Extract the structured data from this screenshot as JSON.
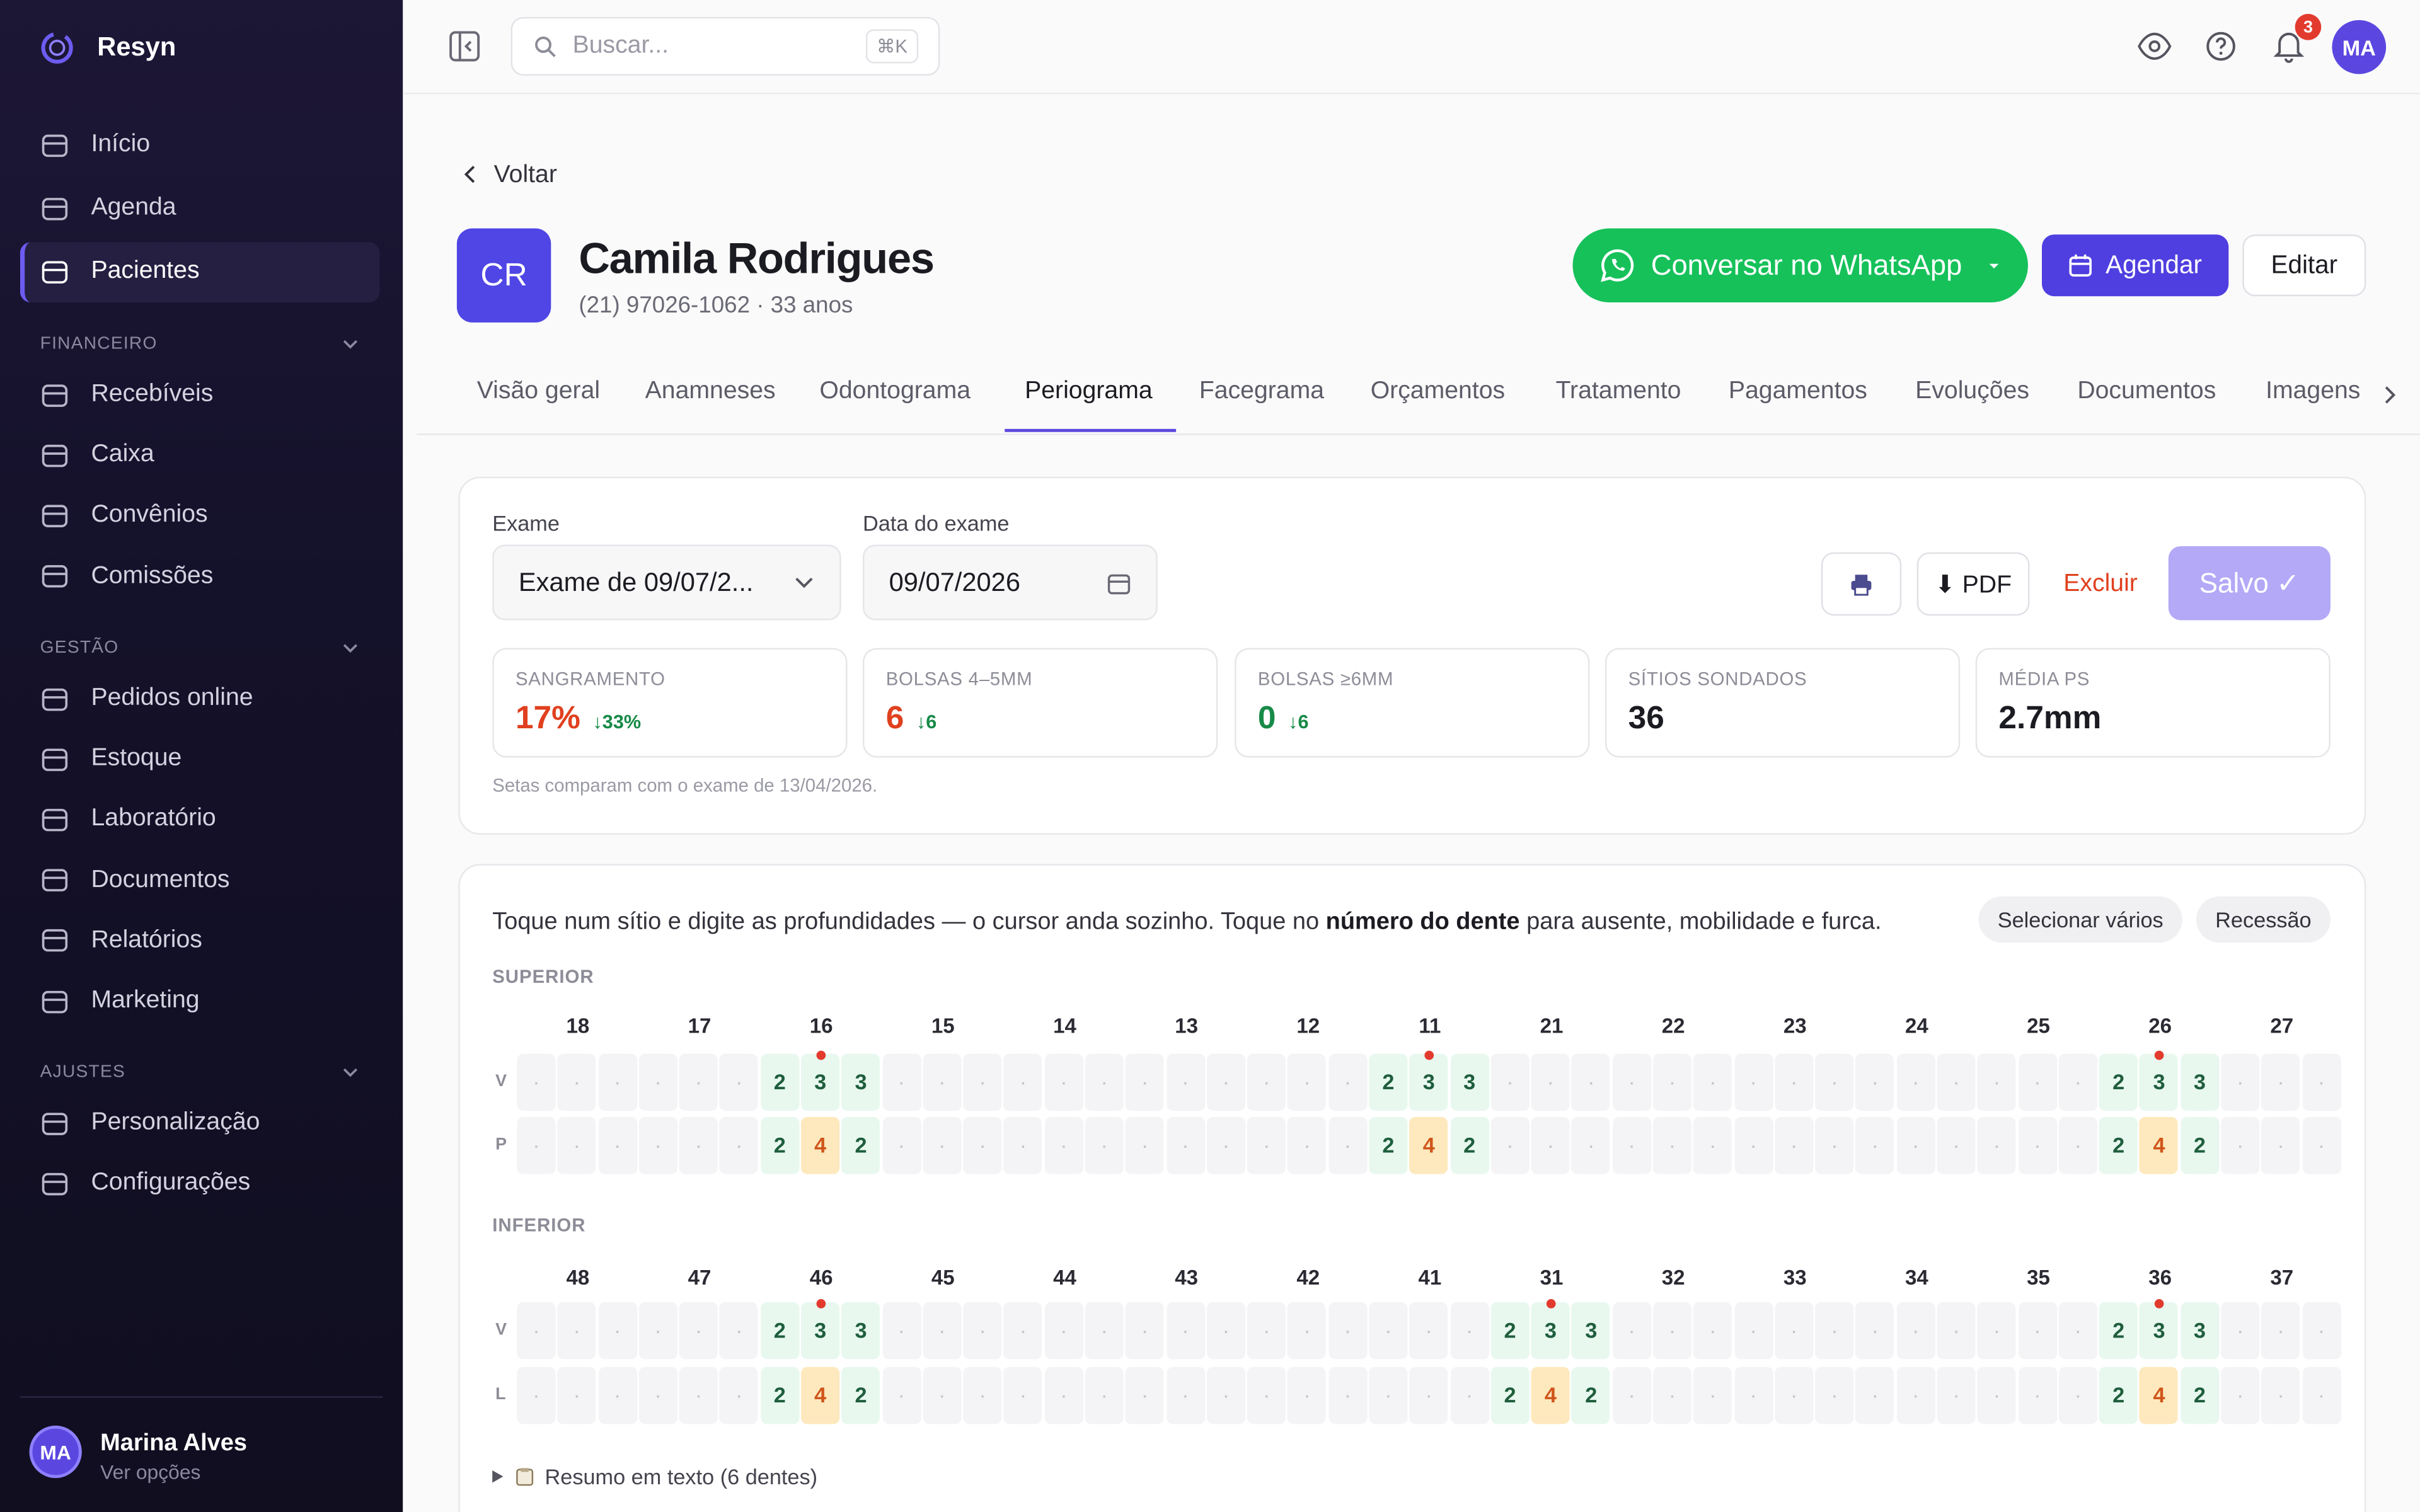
{
  "sidebar": {
    "brand": "Resyn",
    "items": [
      {
        "label": "Início"
      },
      {
        "label": "Agenda"
      },
      {
        "label": "Pacientes",
        "active": true
      }
    ],
    "sections": [
      {
        "title": "FINANCEIRO",
        "items": [
          "Recebíveis",
          "Caixa",
          "Convênios",
          "Comissões"
        ]
      },
      {
        "title": "GESTÃO",
        "items": [
          "Pedidos online",
          "Estoque",
          "Laboratório",
          "Documentos",
          "Relatórios",
          "Marketing"
        ]
      },
      {
        "title": "AJUSTES",
        "items": [
          "Personalização",
          "Configurações"
        ]
      }
    ],
    "user": {
      "initials": "MA",
      "name": "Marina Alves",
      "subtitle": "Ver opções"
    }
  },
  "topbar": {
    "search_placeholder": "Buscar...",
    "shortcut": "⌘K",
    "notifications": "3",
    "avatar": "MA"
  },
  "patient": {
    "back": "Voltar",
    "initials": "CR",
    "name": "Camila Rodrigues",
    "details": "(21) 97026-1062 · 33 anos",
    "actions": {
      "whatsapp": "Conversar no WhatsApp",
      "schedule": "Agendar",
      "edit": "Editar"
    }
  },
  "tabs": [
    {
      "label": "Visão geral"
    },
    {
      "label": "Anamneses"
    },
    {
      "label": "Odontograma"
    },
    {
      "label": "Periograma",
      "active": true
    },
    {
      "label": "Facegrama"
    },
    {
      "label": "Orçamentos"
    },
    {
      "label": "Tratamento"
    },
    {
      "label": "Pagamentos"
    },
    {
      "label": "Evoluções"
    },
    {
      "label": "Documentos"
    },
    {
      "label": "Imagens"
    }
  ],
  "exam": {
    "exam_label": "Exame",
    "exam_value": "Exame de 09/07/2...",
    "date_label": "Data do exame",
    "date_value": "09/07/2026",
    "pdf": "⬇ PDF",
    "delete": "Excluir",
    "saved": "Salvo ✓",
    "stats": [
      {
        "label": "SANGRAMENTO",
        "value": "17%",
        "delta": "↓33%",
        "tone": "danger"
      },
      {
        "label": "BOLSAS 4–5MM",
        "value": "6",
        "delta": "↓6",
        "tone": "danger"
      },
      {
        "label": "BOLSAS ≥6MM",
        "value": "0",
        "delta": "↓6",
        "tone": "success"
      },
      {
        "label": "SÍTIOS SONDADOS",
        "value": "36",
        "tone": "neutral"
      },
      {
        "label": "MÉDIA PS",
        "value": "2.7mm",
        "tone": "neutral"
      }
    ],
    "note": "Setas comparam com o exame de 13/04/2026."
  },
  "periogram": {
    "instruction": {
      "before": "Toque num sítio e digite as profundidades — o cursor anda sozinho. Toque no ",
      "bold": "número do dente",
      "after": " para ausente, mobilidade e furca."
    },
    "buttons": [
      "Selecionar vários",
      "Recessão"
    ],
    "arches": [
      {
        "title": "SUPERIOR",
        "rows": [
          "V",
          "P"
        ],
        "teeth": [
          {
            "number": 18,
            "rows": [
              [
                null,
                null,
                null
              ],
              [
                null,
                null,
                null
              ]
            ]
          },
          {
            "number": 17,
            "rows": [
              [
                null,
                null,
                null
              ],
              [
                null,
                null,
                null
              ]
            ]
          },
          {
            "number": 16,
            "rows": [
              [
                2,
                3,
                3
              ],
              [
                2,
                4,
                2
              ]
            ],
            "bleeding": [
              false,
              true,
              false
            ]
          },
          {
            "number": 15,
            "rows": [
              [
                null,
                null,
                null
              ],
              [
                null,
                null,
                null
              ]
            ]
          },
          {
            "number": 14,
            "rows": [
              [
                null,
                null,
                null
              ],
              [
                null,
                null,
                null
              ]
            ]
          },
          {
            "number": 13,
            "rows": [
              [
                null,
                null,
                null
              ],
              [
                null,
                null,
                null
              ]
            ]
          },
          {
            "number": 12,
            "rows": [
              [
                null,
                null,
                null
              ],
              [
                null,
                null,
                null
              ]
            ]
          },
          {
            "number": 11,
            "rows": [
              [
                2,
                3,
                3
              ],
              [
                2,
                4,
                2
              ]
            ],
            "bleeding": [
              false,
              true,
              false
            ]
          },
          {
            "number": 21,
            "rows": [
              [
                null,
                null,
                null
              ],
              [
                null,
                null,
                null
              ]
            ]
          },
          {
            "number": 22,
            "rows": [
              [
                null,
                null,
                null
              ],
              [
                null,
                null,
                null
              ]
            ]
          },
          {
            "number": 23,
            "rows": [
              [
                null,
                null,
                null
              ],
              [
                null,
                null,
                null
              ]
            ]
          },
          {
            "number": 24,
            "rows": [
              [
                null,
                null,
                null
              ],
              [
                null,
                null,
                null
              ]
            ]
          },
          {
            "number": 25,
            "rows": [
              [
                null,
                null,
                null
              ],
              [
                null,
                null,
                null
              ]
            ]
          },
          {
            "number": 26,
            "rows": [
              [
                2,
                3,
                3
              ],
              [
                2,
                4,
                2
              ]
            ],
            "bleeding": [
              false,
              true,
              false
            ]
          },
          {
            "number": 27,
            "rows": [
              [
                null,
                null,
                null
              ],
              [
                null,
                null,
                null
              ]
            ]
          }
        ]
      },
      {
        "title": "INFERIOR",
        "rows": [
          "V",
          "L"
        ],
        "teeth": [
          {
            "number": 48,
            "rows": [
              [
                null,
                null,
                null
              ],
              [
                null,
                null,
                null
              ]
            ]
          },
          {
            "number": 47,
            "rows": [
              [
                null,
                null,
                null
              ],
              [
                null,
                null,
                null
              ]
            ]
          },
          {
            "number": 46,
            "rows": [
              [
                2,
                3,
                3
              ],
              [
                2,
                4,
                2
              ]
            ],
            "bleeding": [
              false,
              true,
              false
            ]
          },
          {
            "number": 45,
            "rows": [
              [
                null,
                null,
                null
              ],
              [
                null,
                null,
                null
              ]
            ]
          },
          {
            "number": 44,
            "rows": [
              [
                null,
                null,
                null
              ],
              [
                null,
                null,
                null
              ]
            ]
          },
          {
            "number": 43,
            "rows": [
              [
                null,
                null,
                null
              ],
              [
                null,
                null,
                null
              ]
            ]
          },
          {
            "number": 42,
            "rows": [
              [
                null,
                null,
                null
              ],
              [
                null,
                null,
                null
              ]
            ]
          },
          {
            "number": 41,
            "rows": [
              [
                null,
                null,
                null
              ],
              [
                null,
                null,
                null
              ]
            ]
          },
          {
            "number": 31,
            "rows": [
              [
                2,
                3,
                3
              ],
              [
                2,
                4,
                2
              ]
            ],
            "bleeding": [
              false,
              true,
              false
            ]
          },
          {
            "number": 32,
            "rows": [
              [
                null,
                null,
                null
              ],
              [
                null,
                null,
                null
              ]
            ]
          },
          {
            "number": 33,
            "rows": [
              [
                null,
                null,
                null
              ],
              [
                null,
                null,
                null
              ]
            ]
          },
          {
            "number": 34,
            "rows": [
              [
                null,
                null,
                null
              ],
              [
                null,
                null,
                null
              ]
            ]
          },
          {
            "number": 35,
            "rows": [
              [
                null,
                null,
                null
              ],
              [
                null,
                null,
                null
              ]
            ]
          },
          {
            "number": 36,
            "rows": [
              [
                2,
                3,
                3
              ],
              [
                2,
                4,
                2
              ]
            ],
            "bleeding": [
              false,
              true,
              false
            ]
          },
          {
            "number": 37,
            "rows": [
              [
                null,
                null,
                null
              ],
              [
                null,
                null,
                null
              ]
            ]
          }
        ]
      }
    ],
    "summary": "Resumo em texto (6 dentes)"
  }
}
